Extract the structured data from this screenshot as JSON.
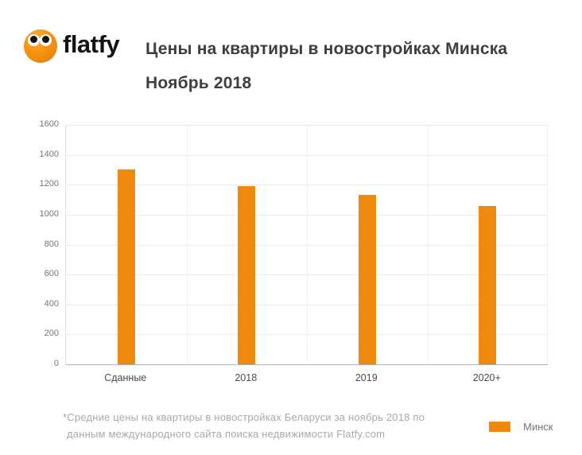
{
  "brand": {
    "logo_text": "flatfy"
  },
  "header": {
    "title_line1": "Цены на квартиры в новостройках Минска",
    "title_line2": "Ноябрь 2018"
  },
  "chart_data": {
    "type": "bar",
    "title": "Цены на квартиры в новостройках Минска",
    "subtitle": "Ноябрь 2018",
    "categories": [
      "Сданные",
      "2018",
      "2019",
      "2020+"
    ],
    "series": [
      {
        "name": "Минск",
        "color": "#EF8A10",
        "values": [
          1300,
          1190,
          1130,
          1060
        ]
      }
    ],
    "xlabel": "",
    "ylabel": "",
    "ylim": [
      0,
      1600
    ],
    "ytick_step": 200,
    "yticks": [
      0,
      200,
      400,
      600,
      800,
      1000,
      1200,
      1400,
      1600
    ],
    "grid": true,
    "legend_position": "bottom-right"
  },
  "footnote": {
    "lines": [
      "*Средние цены на квартиры в новостройках Беларуси за ноябрь 2018 по",
      "данным международного сайта поиска недвижимости Flatfy.com"
    ]
  },
  "colors": {
    "bar": "#EF8A10",
    "title_text": "#3e3e3e",
    "axis_text": "#757575",
    "category_text": "#4a4a4a",
    "footnote_text": "#a9a9a9",
    "gridline": "#ebebeb",
    "axis_line": "#b3b3b3"
  }
}
